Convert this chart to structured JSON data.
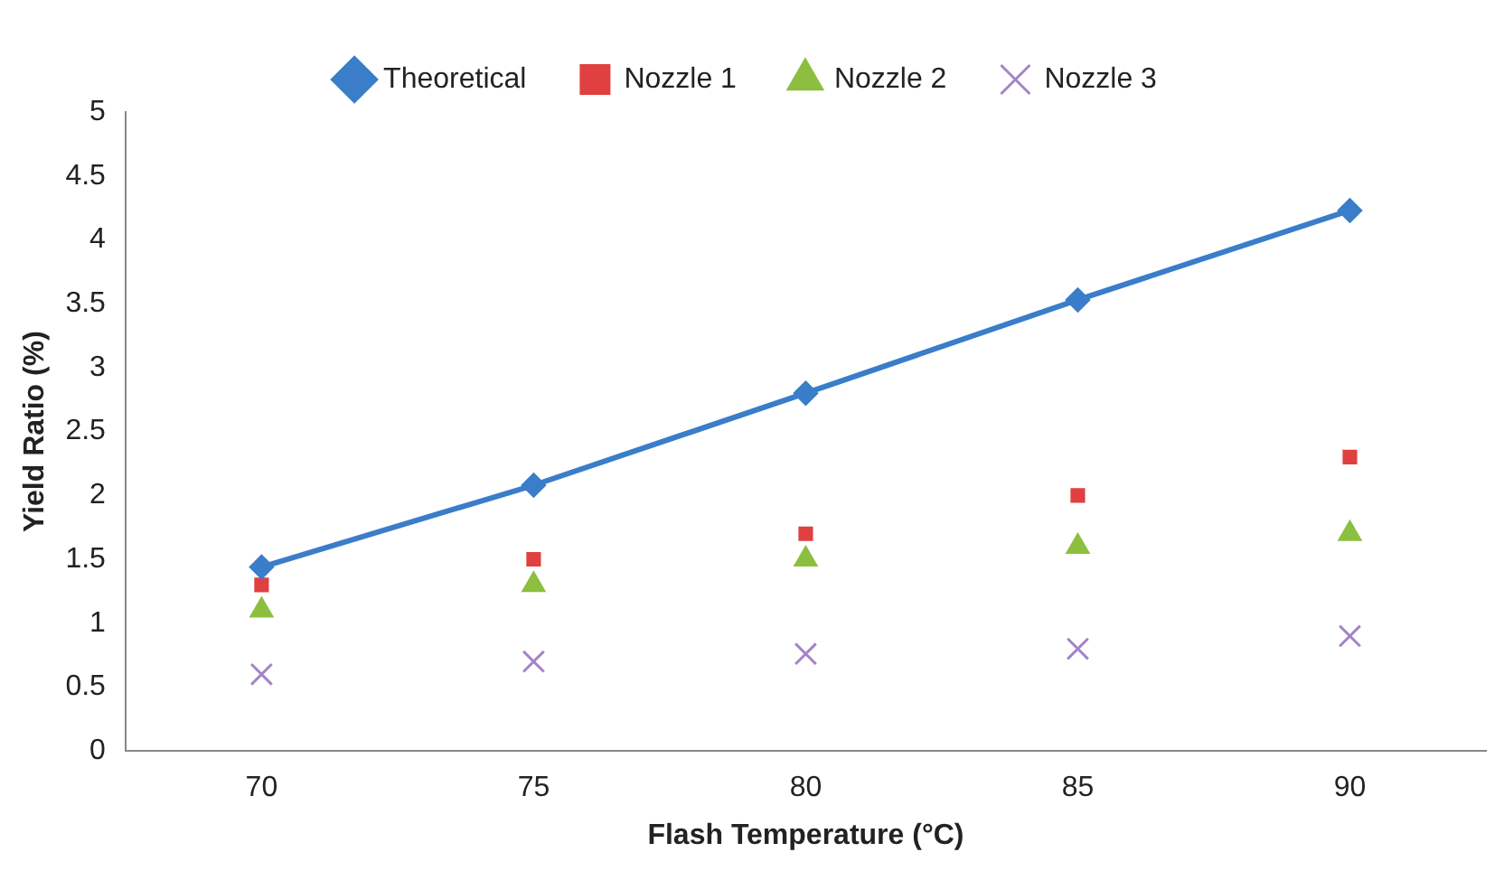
{
  "chart_data": {
    "type": "scatter",
    "xlabel": "Flash Temperature (°C)",
    "ylabel": "Yield Ratio (%)",
    "categories": [
      "70",
      "75",
      "80",
      "85",
      "90"
    ],
    "ylim": [
      0,
      5
    ],
    "yticks": [
      0,
      0.5,
      1,
      1.5,
      2,
      2.5,
      3,
      3.5,
      4,
      4.5,
      5
    ],
    "grid": false,
    "legend": "top",
    "series": [
      {
        "name": "Theoretical",
        "type": "line",
        "marker": "diamond",
        "color": "#3a7dc9",
        "values": [
          1.44,
          2.08,
          2.8,
          3.53,
          4.23
        ]
      },
      {
        "name": "Nozzle 1",
        "marker": "square",
        "color": "#e0403f",
        "values": [
          1.3,
          1.5,
          1.7,
          2.0,
          2.3
        ]
      },
      {
        "name": "Nozzle 2",
        "marker": "triangle",
        "color": "#8cbf3f",
        "values": [
          1.1,
          1.3,
          1.5,
          1.6,
          1.7
        ]
      },
      {
        "name": "Nozzle 3",
        "marker": "cross",
        "color": "#a583c8",
        "values": [
          0.6,
          0.7,
          0.76,
          0.8,
          0.9
        ]
      }
    ]
  }
}
